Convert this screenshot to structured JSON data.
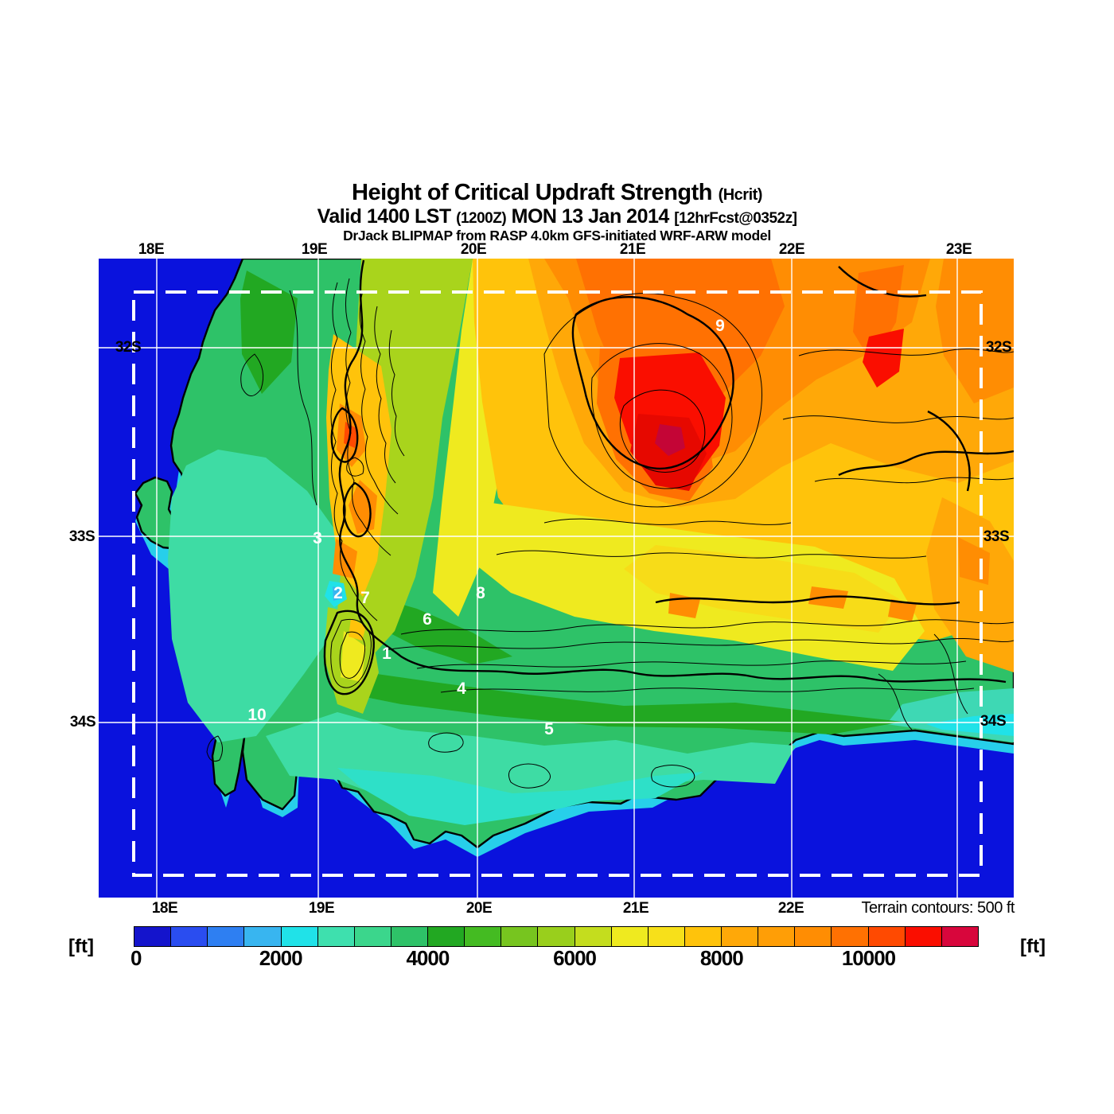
{
  "header": {
    "title": "Height of Critical Updraft Strength",
    "title_suffix": "(Hcrit)",
    "valid_prefix": "Valid 1400 LST",
    "valid_zulu": "(1200Z)",
    "valid_date": "MON 13 Jan 2014",
    "valid_fcst": "[12hrFcst@0352z]",
    "model_line": "DrJack BLIPMAP from RASP 4.0km GFS-initiated WRF-ARW model"
  },
  "map": {
    "terrain_note": "Terrain contours: 500 ft",
    "grid": {
      "top_labels": [
        "18E",
        "19E",
        "20E",
        "21E",
        "22E",
        "23E"
      ],
      "bottom_labels": [
        "18E",
        "19E",
        "20E",
        "21E",
        "22E"
      ],
      "left_labels": [
        "32S",
        "33S",
        "34S"
      ],
      "right_labels": [
        "32S",
        "33S",
        "34S"
      ]
    },
    "waypoints": [
      "1",
      "2",
      "3",
      "4",
      "5",
      "6",
      "7",
      "8",
      "9",
      "10"
    ],
    "ocean_color": "#0A12DD",
    "grid_color": "#ffffff",
    "contour_color": "#000000",
    "contour_interval_ft": 500
  },
  "colorbar": {
    "unit_left": "[ft]",
    "unit_right": "[ft]",
    "tick_labels": [
      "0",
      "2000",
      "4000",
      "6000",
      "8000",
      "10000"
    ],
    "min_ft": 0,
    "max_ft": 11500,
    "step_ft": 500,
    "colors": [
      "#1414CC",
      "#2A4DF0",
      "#2E7FF2",
      "#38B5F0",
      "#20E2E8",
      "#3EE0AE",
      "#3BD68C",
      "#2EC268",
      "#22A822",
      "#44BB22",
      "#77C51F",
      "#99CF1C",
      "#C4DD1E",
      "#EFEA1F",
      "#F7E01A",
      "#FFC30B",
      "#FFA808",
      "#FF9E06",
      "#FF8D03",
      "#FF7102",
      "#FF4A01",
      "#FA0E00",
      "#D8063C"
    ]
  }
}
